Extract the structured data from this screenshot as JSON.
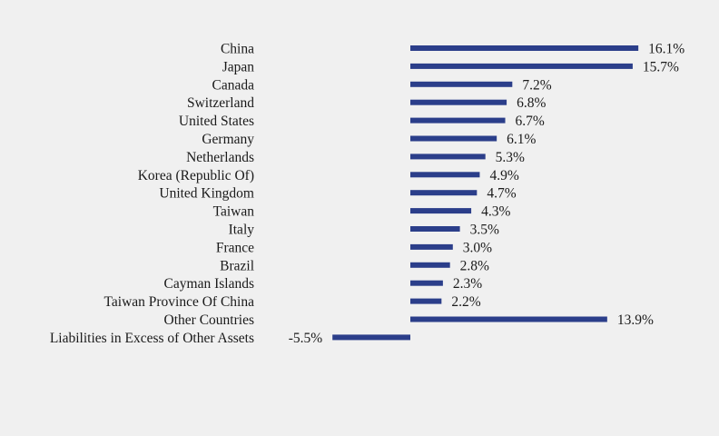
{
  "chart_data": {
    "type": "bar",
    "orientation": "horizontal",
    "bar_color": "#2b3e8a",
    "categories": [
      "China",
      "Japan",
      "Canada",
      "Switzerland",
      "United States",
      "Germany",
      "Netherlands",
      "Korea (Republic Of)",
      "United Kingdom",
      "Taiwan",
      "Italy",
      "France",
      "Brazil",
      "Cayman Islands",
      "Taiwan Province Of China",
      "Other Countries",
      "Liabilities in Excess of Other Assets"
    ],
    "values": [
      16.1,
      15.7,
      7.2,
      6.8,
      6.7,
      6.1,
      5.3,
      4.9,
      4.7,
      4.3,
      3.5,
      3.0,
      2.8,
      2.3,
      2.2,
      13.9,
      -5.5
    ],
    "value_labels": [
      "16.1%",
      "15.7%",
      "7.2%",
      "6.8%",
      "6.7%",
      "6.1%",
      "5.3%",
      "4.9%",
      "4.7%",
      "4.3%",
      "3.5%",
      "3.0%",
      "2.8%",
      "2.3%",
      "2.2%",
      "13.9%",
      "-5.5%"
    ],
    "unit": "%",
    "xlim": [
      -5.5,
      16.1
    ],
    "grid": false,
    "legend": "none"
  }
}
